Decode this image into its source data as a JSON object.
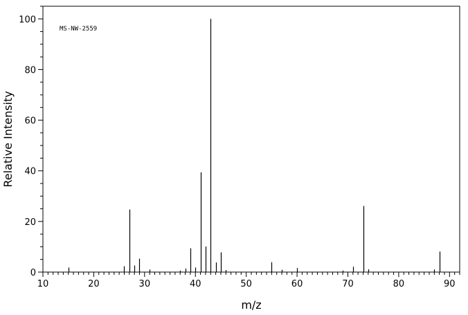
{
  "chart_data": {
    "type": "bar",
    "style": "mass-spectrum-sticks",
    "annotation": "MS-NW-2559",
    "xlabel": "m/z",
    "ylabel": "Relative Intensity",
    "xlim": [
      10,
      92
    ],
    "ylim": [
      0,
      105
    ],
    "x_ticks": [
      10,
      20,
      30,
      40,
      50,
      60,
      70,
      80,
      90
    ],
    "y_ticks": [
      0,
      20,
      40,
      60,
      80,
      100
    ],
    "grid": false,
    "x": [
      15,
      26,
      27,
      28,
      29,
      31,
      37,
      38,
      39,
      40,
      41,
      42,
      43,
      44,
      45,
      46,
      55,
      57,
      60,
      69,
      71,
      73,
      74,
      87,
      88
    ],
    "values": [
      1.8,
      2.3,
      24.7,
      2.6,
      5.3,
      1.0,
      0.6,
      1.4,
      9.4,
      1.8,
      39.4,
      10.1,
      100,
      3.8,
      7.8,
      0.8,
      3.9,
      0.9,
      1.6,
      0.6,
      2.1,
      26.1,
      1.1,
      1.0,
      8.1
    ]
  }
}
